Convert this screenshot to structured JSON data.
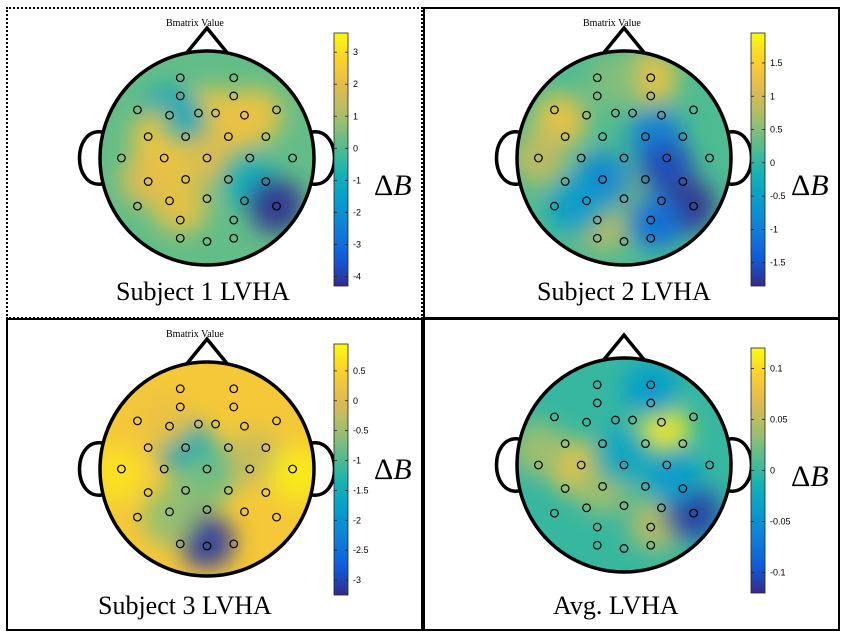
{
  "chart_data": [
    {
      "type": "heatmap",
      "map_title": "Bmatrix Value",
      "title": "Subject 1 LVHA",
      "colorbar_label_symbol": "Δ",
      "colorbar_label_var": "B",
      "clim": [
        -4.3,
        3.6
      ],
      "ticks": [
        3,
        2,
        1,
        0,
        -1,
        -2,
        -3,
        -4
      ],
      "background_value": 0.2,
      "blobs": [
        {
          "u": 0.05,
          "v": -0.4,
          "value": 2.4
        },
        {
          "u": 0.45,
          "v": -0.4,
          "value": 2.3
        },
        {
          "u": -0.35,
          "v": -0.4,
          "value": -1.5
        },
        {
          "u": -0.45,
          "v": -0.2,
          "value": 2.4
        },
        {
          "u": -0.15,
          "v": -0.2,
          "value": -1.2
        },
        {
          "u": 0.25,
          "v": -0.3,
          "value": 2.2
        },
        {
          "u": -0.35,
          "v": 0.05,
          "value": 2.5
        },
        {
          "u": 0.0,
          "v": 0.0,
          "value": 2.0
        },
        {
          "u": -0.55,
          "v": 0.2,
          "value": 2.0
        },
        {
          "u": -0.25,
          "v": 0.45,
          "value": 2.2
        },
        {
          "u": 0.4,
          "v": 0.22,
          "value": -1.0
        },
        {
          "u": 0.65,
          "v": 0.45,
          "value": -4.2
        }
      ],
      "electrodes": [
        {
          "u": -0.25,
          "v": -0.75
        },
        {
          "u": 0.25,
          "v": -0.75
        },
        {
          "u": -0.25,
          "v": -0.58
        },
        {
          "u": 0.25,
          "v": -0.58
        },
        {
          "u": -0.65,
          "v": -0.45
        },
        {
          "u": 0.65,
          "v": -0.45
        },
        {
          "u": -0.08,
          "v": -0.42
        },
        {
          "u": 0.08,
          "v": -0.42
        },
        {
          "u": -0.35,
          "v": -0.4
        },
        {
          "u": 0.35,
          "v": -0.4
        },
        {
          "u": -0.55,
          "v": -0.2
        },
        {
          "u": 0.55,
          "v": -0.2
        },
        {
          "u": -0.2,
          "v": -0.2
        },
        {
          "u": 0.2,
          "v": -0.2
        },
        {
          "u": -0.8,
          "v": 0.0
        },
        {
          "u": 0.8,
          "v": 0.0
        },
        {
          "u": -0.4,
          "v": 0.0
        },
        {
          "u": 0.4,
          "v": 0.0
        },
        {
          "u": 0.0,
          "v": 0.0
        },
        {
          "u": -0.55,
          "v": 0.22
        },
        {
          "u": 0.55,
          "v": 0.22
        },
        {
          "u": -0.2,
          "v": 0.2
        },
        {
          "u": 0.2,
          "v": 0.2
        },
        {
          "u": -0.65,
          "v": 0.45
        },
        {
          "u": 0.65,
          "v": 0.45
        },
        {
          "u": -0.35,
          "v": 0.4
        },
        {
          "u": 0.35,
          "v": 0.4
        },
        {
          "u": 0.0,
          "v": 0.38
        },
        {
          "u": -0.25,
          "v": 0.58
        },
        {
          "u": 0.25,
          "v": 0.58
        },
        {
          "u": -0.25,
          "v": 0.75
        },
        {
          "u": 0.0,
          "v": 0.78
        },
        {
          "u": 0.25,
          "v": 0.75
        }
      ]
    },
    {
      "type": "heatmap",
      "map_title": "Bmatrix Value",
      "title": "Subject 2 LVHA",
      "colorbar_label_symbol": "Δ",
      "colorbar_label_var": "B",
      "clim": [
        -1.85,
        1.95
      ],
      "ticks": [
        1.5,
        1,
        0.5,
        0,
        -0.5,
        -1,
        -1.5
      ],
      "background_value": 0.2,
      "blobs": [
        {
          "u": -0.6,
          "v": -0.35,
          "value": 1.3
        },
        {
          "u": -0.8,
          "v": 0.0,
          "value": 0.9
        },
        {
          "u": 0.25,
          "v": -0.75,
          "value": 1.3
        },
        {
          "u": -0.1,
          "v": -0.72,
          "value": 0.5
        },
        {
          "u": -0.2,
          "v": 0.6,
          "value": 0.9
        },
        {
          "u": 0.0,
          "v": 0.35,
          "value": 0.5
        },
        {
          "u": 0.3,
          "v": -0.2,
          "value": -1.0
        },
        {
          "u": 0.4,
          "v": 0.1,
          "value": -1.6
        },
        {
          "u": 0.6,
          "v": 0.45,
          "value": -1.8
        },
        {
          "u": 0.3,
          "v": 0.6,
          "value": -1.2
        },
        {
          "u": -0.2,
          "v": 0.2,
          "value": -0.9
        },
        {
          "u": -0.45,
          "v": 0.45,
          "value": -0.6
        }
      ],
      "electrodes": [
        {
          "u": -0.25,
          "v": -0.75
        },
        {
          "u": 0.25,
          "v": -0.75
        },
        {
          "u": -0.25,
          "v": -0.58
        },
        {
          "u": 0.25,
          "v": -0.58
        },
        {
          "u": -0.65,
          "v": -0.45
        },
        {
          "u": 0.65,
          "v": -0.45
        },
        {
          "u": -0.08,
          "v": -0.42
        },
        {
          "u": 0.08,
          "v": -0.42
        },
        {
          "u": -0.35,
          "v": -0.4
        },
        {
          "u": 0.35,
          "v": -0.4
        },
        {
          "u": -0.55,
          "v": -0.2
        },
        {
          "u": 0.55,
          "v": -0.2
        },
        {
          "u": -0.2,
          "v": -0.2
        },
        {
          "u": 0.2,
          "v": -0.2
        },
        {
          "u": -0.8,
          "v": 0.0
        },
        {
          "u": 0.8,
          "v": 0.0
        },
        {
          "u": -0.4,
          "v": 0.0
        },
        {
          "u": 0.4,
          "v": 0.0
        },
        {
          "u": 0.0,
          "v": 0.0
        },
        {
          "u": -0.55,
          "v": 0.22
        },
        {
          "u": 0.55,
          "v": 0.22
        },
        {
          "u": -0.2,
          "v": 0.2
        },
        {
          "u": 0.2,
          "v": 0.2
        },
        {
          "u": -0.65,
          "v": 0.45
        },
        {
          "u": 0.65,
          "v": 0.45
        },
        {
          "u": -0.35,
          "v": 0.4
        },
        {
          "u": 0.35,
          "v": 0.4
        },
        {
          "u": 0.0,
          "v": 0.38
        },
        {
          "u": -0.25,
          "v": 0.58
        },
        {
          "u": 0.25,
          "v": 0.58
        },
        {
          "u": -0.25,
          "v": 0.75
        },
        {
          "u": 0.0,
          "v": 0.78
        },
        {
          "u": 0.25,
          "v": 0.75
        }
      ]
    },
    {
      "type": "heatmap",
      "map_title": "Bmatrix Value",
      "title": "Subject 3 LVHA",
      "colorbar_label_symbol": "Δ",
      "colorbar_label_var": "B",
      "clim": [
        -3.25,
        0.95
      ],
      "ticks": [
        0.5,
        0,
        -0.5,
        -1,
        -1.5,
        -2,
        -2.5,
        -3
      ],
      "background_value": 0.35,
      "blobs": [
        {
          "u": -0.2,
          "v": -0.2,
          "value": -1.8
        },
        {
          "u": 0.05,
          "v": 0.0,
          "value": -1.0
        },
        {
          "u": -0.1,
          "v": 0.2,
          "value": -0.7
        },
        {
          "u": 0.0,
          "v": 0.68,
          "value": -3.1
        },
        {
          "u": -0.35,
          "v": 0.45,
          "value": -0.6
        },
        {
          "u": 0.45,
          "v": -0.1,
          "value": -0.2
        },
        {
          "u": -0.4,
          "v": -0.45,
          "value": 0.2
        },
        {
          "u": 0.85,
          "v": 0.05,
          "value": 0.8
        },
        {
          "u": -0.85,
          "v": 0.05,
          "value": 0.7
        }
      ],
      "electrodes": [
        {
          "u": -0.25,
          "v": -0.75
        },
        {
          "u": 0.25,
          "v": -0.75
        },
        {
          "u": -0.25,
          "v": -0.58
        },
        {
          "u": 0.25,
          "v": -0.58
        },
        {
          "u": -0.65,
          "v": -0.45
        },
        {
          "u": 0.65,
          "v": -0.45
        },
        {
          "u": -0.08,
          "v": -0.42
        },
        {
          "u": 0.08,
          "v": -0.42
        },
        {
          "u": -0.35,
          "v": -0.4
        },
        {
          "u": 0.35,
          "v": -0.4
        },
        {
          "u": -0.55,
          "v": -0.2
        },
        {
          "u": 0.55,
          "v": -0.2
        },
        {
          "u": -0.2,
          "v": -0.2
        },
        {
          "u": 0.2,
          "v": -0.2
        },
        {
          "u": -0.8,
          "v": 0.0
        },
        {
          "u": 0.8,
          "v": 0.0
        },
        {
          "u": -0.4,
          "v": 0.0
        },
        {
          "u": 0.4,
          "v": 0.0
        },
        {
          "u": 0.0,
          "v": 0.0
        },
        {
          "u": -0.55,
          "v": 0.22
        },
        {
          "u": 0.55,
          "v": 0.22
        },
        {
          "u": -0.2,
          "v": 0.2
        },
        {
          "u": 0.2,
          "v": 0.2
        },
        {
          "u": -0.65,
          "v": 0.45
        },
        {
          "u": 0.65,
          "v": 0.45
        },
        {
          "u": -0.35,
          "v": 0.4
        },
        {
          "u": 0.35,
          "v": 0.4
        },
        {
          "u": 0.0,
          "v": 0.38
        },
        {
          "u": -0.25,
          "v": 0.7
        },
        {
          "u": 0.25,
          "v": 0.7
        },
        {
          "u": 0.0,
          "v": 0.72
        }
      ]
    },
    {
      "type": "heatmap",
      "map_title": "",
      "title": "Avg. LVHA",
      "colorbar_label_symbol": "Δ",
      "colorbar_label_var": "B",
      "clim": [
        -0.12,
        0.12
      ],
      "ticks": [
        0.1,
        0.05,
        0,
        -0.05,
        -0.1
      ],
      "background_value": 0.0,
      "blobs": [
        {
          "u": 0.35,
          "v": -0.32,
          "value": 0.11
        },
        {
          "u": -0.45,
          "v": 0.02,
          "value": 0.08
        },
        {
          "u": -0.8,
          "v": -0.15,
          "value": 0.04
        },
        {
          "u": -0.2,
          "v": 0.2,
          "value": 0.04
        },
        {
          "u": 0.3,
          "v": 0.55,
          "value": 0.05
        },
        {
          "u": 0.65,
          "v": 0.45,
          "value": -0.11
        },
        {
          "u": 0.25,
          "v": -0.7,
          "value": -0.04
        },
        {
          "u": 0.0,
          "v": -0.1,
          "value": -0.03
        },
        {
          "u": 0.45,
          "v": 0.1,
          "value": -0.04
        }
      ],
      "electrodes": [
        {
          "u": -0.25,
          "v": -0.75
        },
        {
          "u": 0.25,
          "v": -0.75
        },
        {
          "u": -0.25,
          "v": -0.58
        },
        {
          "u": 0.25,
          "v": -0.58
        },
        {
          "u": -0.65,
          "v": -0.45
        },
        {
          "u": 0.65,
          "v": -0.45
        },
        {
          "u": -0.08,
          "v": -0.42
        },
        {
          "u": 0.08,
          "v": -0.42
        },
        {
          "u": -0.35,
          "v": -0.4
        },
        {
          "u": 0.35,
          "v": -0.4
        },
        {
          "u": -0.55,
          "v": -0.2
        },
        {
          "u": 0.55,
          "v": -0.2
        },
        {
          "u": -0.2,
          "v": -0.2
        },
        {
          "u": 0.2,
          "v": -0.2
        },
        {
          "u": -0.8,
          "v": 0.0
        },
        {
          "u": 0.8,
          "v": 0.0
        },
        {
          "u": -0.4,
          "v": 0.0
        },
        {
          "u": 0.4,
          "v": 0.0
        },
        {
          "u": 0.0,
          "v": 0.0
        },
        {
          "u": -0.55,
          "v": 0.22
        },
        {
          "u": 0.55,
          "v": 0.22
        },
        {
          "u": -0.2,
          "v": 0.2
        },
        {
          "u": 0.2,
          "v": 0.2
        },
        {
          "u": -0.65,
          "v": 0.45
        },
        {
          "u": 0.65,
          "v": 0.45
        },
        {
          "u": -0.35,
          "v": 0.4
        },
        {
          "u": 0.35,
          "v": 0.4
        },
        {
          "u": 0.0,
          "v": 0.38
        },
        {
          "u": -0.25,
          "v": 0.58
        },
        {
          "u": 0.25,
          "v": 0.58
        },
        {
          "u": -0.25,
          "v": 0.75
        },
        {
          "u": 0.0,
          "v": 0.78
        },
        {
          "u": 0.25,
          "v": 0.75
        }
      ]
    }
  ]
}
